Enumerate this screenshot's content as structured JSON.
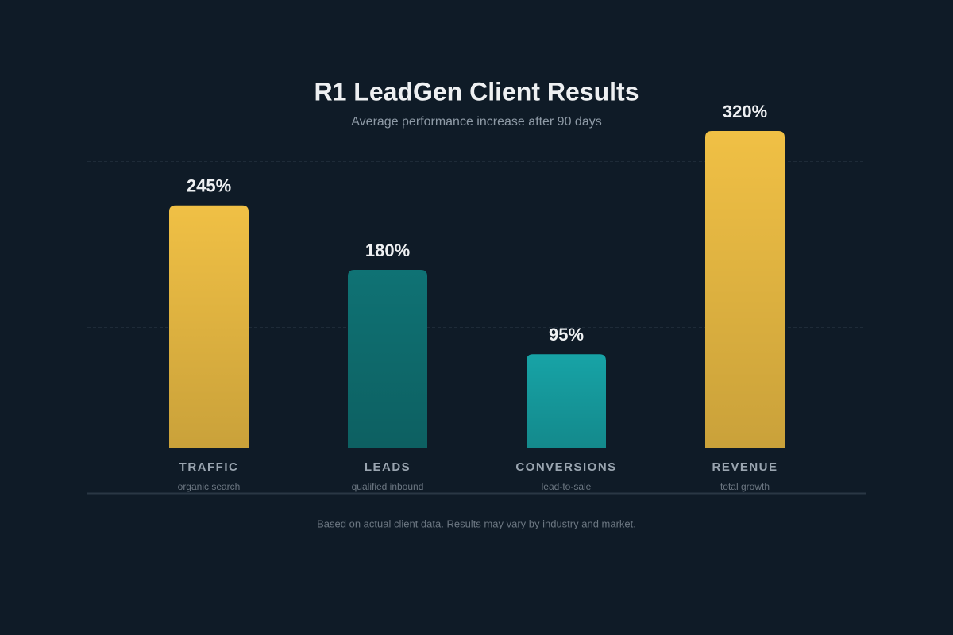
{
  "chart_data": {
    "type": "bar",
    "title": "R1 LeadGen Client Results",
    "subtitle": "Average performance increase after 90 days",
    "footnote": "Based on actual client data. Results may vary by industry and market.",
    "categories": [
      "TRAFFIC",
      "LEADS",
      "CONVERSIONS",
      "REVENUE"
    ],
    "descriptions": [
      "organic search",
      "qualified inbound",
      "lead-to-sale",
      "total growth"
    ],
    "values": [
      245,
      180,
      95,
      320
    ],
    "value_labels": [
      "245%",
      "180%",
      "95%",
      "320%"
    ],
    "colors": [
      "#f0c045",
      "#0f7274",
      "#17a3a6",
      "#f0c045"
    ]
  }
}
